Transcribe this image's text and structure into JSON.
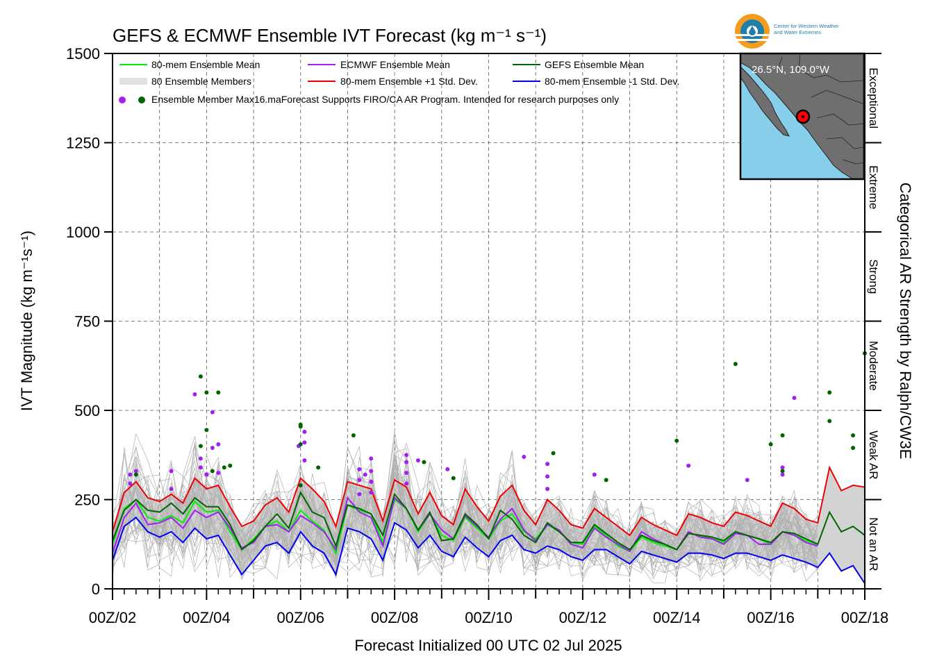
{
  "chart_data": {
    "type": "line",
    "title": "GEFS & ECMWF Ensemble IVT Forecast (kg m⁻¹ s⁻¹)",
    "xlabel": "Forecast Initialized 00 UTC 02 Jul 2025",
    "ylabel": "IVT Magnitude (kg m⁻¹s⁻¹)",
    "right_axis_label": "Categorical AR Strength by Ralph/CW3E",
    "xlim": [
      0,
      384
    ],
    "ylim": [
      0,
      1500
    ],
    "grid": true,
    "x_tick_hours": [
      0,
      48,
      96,
      144,
      192,
      240,
      288,
      336,
      384
    ],
    "x_tick_labels": [
      "00Z/02",
      "00Z/04",
      "00Z/06",
      "00Z/08",
      "00Z/10",
      "00Z/12",
      "00Z/14",
      "00Z/16",
      "00Z/18"
    ],
    "y_ticks": [
      0,
      250,
      500,
      750,
      1000,
      1250,
      1500
    ],
    "ar_categories": [
      {
        "label": "Not an AR",
        "from": 0,
        "to": 250
      },
      {
        "label": "Weak AR",
        "from": 250,
        "to": 500
      },
      {
        "label": "Moderate",
        "from": 500,
        "to": 750
      },
      {
        "label": "Strong",
        "from": 750,
        "to": 1000
      },
      {
        "label": "Extreme",
        "from": 1000,
        "to": 1250
      },
      {
        "label": "Exceptional",
        "from": 1250,
        "to": 1500
      }
    ],
    "legend": {
      "placement": "top-left",
      "entries": [
        "80-mem Ensemble Mean",
        "ECMWF Ensemble Mean",
        "GEFS Ensemble Mean",
        "80 Ensemble Members",
        "80-mem Ensemble +1 Std. Dev.",
        "80-mem Ensemble -1 Std. Dev.",
        "Ensemble Member Max"
      ],
      "note": "16.maForecast Supports FIRO/CA AR Program. Intended for research purposes only"
    },
    "colors": {
      "mean": "#00ee00",
      "ecmwf": "#a020f0",
      "gefs": "#006400",
      "plus_std": "#ee0000",
      "minus_std": "#0000ee",
      "members": "#b0b0b0",
      "band": "#d3d3d3"
    },
    "series": [
      {
        "name": "80-mem Ensemble Mean",
        "x": [
          0,
          6,
          12,
          18,
          24,
          30,
          36,
          42,
          48,
          54,
          60,
          66,
          72,
          78,
          84,
          90,
          96,
          102,
          108,
          114,
          120,
          126,
          132,
          138,
          144,
          150,
          156,
          162,
          168,
          174,
          180,
          186,
          192,
          198,
          204,
          210,
          216,
          222,
          228,
          234,
          240,
          246,
          252,
          258,
          264,
          270,
          276,
          282,
          288,
          294,
          300,
          306,
          312,
          318,
          324,
          330,
          336,
          342,
          348,
          354,
          360
        ],
        "y": [
          125,
          225,
          250,
          200,
          190,
          205,
          185,
          245,
          215,
          220,
          160,
          110,
          140,
          175,
          190,
          160,
          220,
          190,
          165,
          100,
          235,
          220,
          210,
          130,
          250,
          225,
          160,
          210,
          150,
          135,
          200,
          170,
          140,
          190,
          210,
          160,
          140,
          180,
          160,
          130,
          125,
          175,
          150,
          120,
          105,
          145,
          130,
          120,
          110,
          155,
          150,
          140,
          130,
          160,
          150,
          140,
          125,
          160,
          150,
          135,
          125
        ]
      },
      {
        "name": "ECMWF Ensemble Mean",
        "x": [
          0,
          6,
          12,
          18,
          24,
          30,
          36,
          42,
          48,
          54,
          60,
          66,
          72,
          78,
          84,
          90,
          96,
          102,
          108,
          114,
          120,
          126,
          132,
          138,
          144,
          150,
          156,
          162,
          168,
          174,
          180,
          186,
          192,
          198,
          204,
          210,
          216,
          222,
          228,
          234,
          240,
          246,
          252,
          258,
          264,
          270,
          276,
          282,
          288,
          294,
          300,
          306,
          312,
          318,
          324,
          330,
          336,
          342,
          348,
          354,
          360
        ],
        "y": [
          100,
          200,
          240,
          180,
          185,
          200,
          170,
          220,
          200,
          215,
          170,
          115,
          130,
          175,
          180,
          160,
          205,
          185,
          160,
          110,
          255,
          215,
          200,
          120,
          255,
          225,
          165,
          210,
          165,
          140,
          205,
          175,
          145,
          195,
          225,
          165,
          135,
          180,
          165,
          125,
          115,
          170,
          145,
          125,
          105,
          160,
          140,
          125,
          110,
          160,
          145,
          140,
          125,
          155,
          150,
          125,
          125,
          160,
          150,
          130,
          120
        ]
      },
      {
        "name": "GEFS Ensemble Mean",
        "x": [
          0,
          6,
          12,
          18,
          24,
          30,
          36,
          42,
          48,
          54,
          60,
          66,
          72,
          78,
          84,
          90,
          96,
          102,
          108,
          114,
          120,
          126,
          132,
          138,
          144,
          150,
          156,
          162,
          168,
          174,
          180,
          186,
          192,
          198,
          204,
          210,
          216,
          222,
          228,
          234,
          240,
          246,
          252,
          258,
          264,
          270,
          276,
          282,
          288,
          294,
          300,
          306,
          312,
          318,
          324,
          330,
          336,
          342,
          348,
          354,
          360,
          366,
          372,
          378,
          384
        ],
        "y": [
          135,
          220,
          250,
          220,
          215,
          240,
          210,
          255,
          230,
          230,
          180,
          110,
          135,
          175,
          210,
          170,
          270,
          215,
          200,
          120,
          235,
          225,
          210,
          150,
          265,
          225,
          165,
          215,
          135,
          140,
          210,
          180,
          140,
          220,
          195,
          150,
          130,
          185,
          160,
          130,
          130,
          180,
          155,
          130,
          110,
          150,
          135,
          125,
          110,
          155,
          150,
          145,
          135,
          160,
          150,
          140,
          130,
          160,
          155,
          140,
          125,
          215,
          160,
          175,
          150
        ]
      },
      {
        "name": "80-mem Ensemble +1 Std. Dev.",
        "x": [
          0,
          6,
          12,
          18,
          24,
          30,
          36,
          42,
          48,
          54,
          60,
          66,
          72,
          78,
          84,
          90,
          96,
          102,
          108,
          114,
          120,
          126,
          132,
          138,
          144,
          150,
          156,
          162,
          168,
          174,
          180,
          186,
          192,
          198,
          204,
          210,
          216,
          222,
          228,
          234,
          240,
          246,
          252,
          258,
          264,
          270,
          276,
          282,
          288,
          294,
          300,
          306,
          312,
          318,
          324,
          330,
          336,
          342,
          348,
          354,
          360,
          366,
          372,
          378,
          384
        ],
        "y": [
          160,
          270,
          300,
          255,
          245,
          265,
          240,
          310,
          280,
          290,
          230,
          175,
          190,
          235,
          255,
          215,
          310,
          280,
          245,
          175,
          300,
          290,
          280,
          190,
          305,
          285,
          210,
          270,
          205,
          180,
          280,
          230,
          190,
          260,
          290,
          220,
          180,
          250,
          220,
          180,
          170,
          225,
          200,
          175,
          150,
          200,
          180,
          165,
          150,
          210,
          200,
          185,
          175,
          215,
          205,
          190,
          175,
          240,
          225,
          195,
          185,
          340,
          275,
          290,
          285
        ]
      },
      {
        "name": "80-mem Ensemble -1 Std. Dev.",
        "x": [
          0,
          6,
          12,
          18,
          24,
          30,
          36,
          42,
          48,
          54,
          60,
          66,
          72,
          78,
          84,
          90,
          96,
          102,
          108,
          114,
          120,
          126,
          132,
          138,
          144,
          150,
          156,
          162,
          168,
          174,
          180,
          186,
          192,
          198,
          204,
          210,
          216,
          222,
          228,
          234,
          240,
          246,
          252,
          258,
          264,
          270,
          276,
          282,
          288,
          294,
          300,
          306,
          312,
          318,
          324,
          330,
          336,
          342,
          348,
          354,
          360,
          366,
          372,
          378,
          384
        ],
        "y": [
          80,
          175,
          200,
          160,
          145,
          160,
          130,
          170,
          140,
          150,
          95,
          40,
          80,
          120,
          130,
          100,
          160,
          120,
          100,
          40,
          170,
          160,
          140,
          80,
          185,
          165,
          115,
          150,
          105,
          90,
          145,
          115,
          90,
          135,
          150,
          110,
          100,
          120,
          110,
          90,
          80,
          110,
          110,
          90,
          70,
          105,
          95,
          85,
          75,
          100,
          100,
          95,
          85,
          100,
          100,
          90,
          80,
          95,
          85,
          75,
          60,
          100,
          50,
          65,
          15
        ]
      }
    ],
    "member_max_ecmwf": [
      {
        "x": 9,
        "y": 295
      },
      {
        "x": 9,
        "y": 320
      },
      {
        "x": 12,
        "y": 330
      },
      {
        "x": 30,
        "y": 330
      },
      {
        "x": 30,
        "y": 280
      },
      {
        "x": 42,
        "y": 545
      },
      {
        "x": 45,
        "y": 365
      },
      {
        "x": 45,
        "y": 340
      },
      {
        "x": 51,
        "y": 495
      },
      {
        "x": 51,
        "y": 395
      },
      {
        "x": 54,
        "y": 405
      },
      {
        "x": 54,
        "y": 325
      },
      {
        "x": 48,
        "y": 320
      },
      {
        "x": 95,
        "y": 400
      },
      {
        "x": 98,
        "y": 440
      },
      {
        "x": 98,
        "y": 410
      },
      {
        "x": 98,
        "y": 360
      },
      {
        "x": 126,
        "y": 335
      },
      {
        "x": 126,
        "y": 305
      },
      {
        "x": 126,
        "y": 265
      },
      {
        "x": 129,
        "y": 320
      },
      {
        "x": 132,
        "y": 365
      },
      {
        "x": 132,
        "y": 330
      },
      {
        "x": 132,
        "y": 300
      },
      {
        "x": 132,
        "y": 270
      },
      {
        "x": 150,
        "y": 375
      },
      {
        "x": 150,
        "y": 355
      },
      {
        "x": 150,
        "y": 325
      },
      {
        "x": 150,
        "y": 295
      },
      {
        "x": 156,
        "y": 360
      },
      {
        "x": 171,
        "y": 335
      },
      {
        "x": 210,
        "y": 370
      },
      {
        "x": 222,
        "y": 350
      },
      {
        "x": 222,
        "y": 315
      },
      {
        "x": 222,
        "y": 280
      },
      {
        "x": 246,
        "y": 320
      },
      {
        "x": 294,
        "y": 345
      },
      {
        "x": 324,
        "y": 305
      },
      {
        "x": 342,
        "y": 340
      },
      {
        "x": 342,
        "y": 320
      },
      {
        "x": 348,
        "y": 535
      }
    ],
    "member_max_gefs": [
      {
        "x": 12,
        "y": 320
      },
      {
        "x": 45,
        "y": 595
      },
      {
        "x": 45,
        "y": 400
      },
      {
        "x": 48,
        "y": 550
      },
      {
        "x": 48,
        "y": 445
      },
      {
        "x": 51,
        "y": 330
      },
      {
        "x": 54,
        "y": 550
      },
      {
        "x": 57,
        "y": 340
      },
      {
        "x": 60,
        "y": 345
      },
      {
        "x": 96,
        "y": 460
      },
      {
        "x": 96,
        "y": 455
      },
      {
        "x": 96,
        "y": 405
      },
      {
        "x": 96,
        "y": 290
      },
      {
        "x": 105,
        "y": 340
      },
      {
        "x": 123,
        "y": 430
      },
      {
        "x": 159,
        "y": 355
      },
      {
        "x": 174,
        "y": 310
      },
      {
        "x": 225,
        "y": 380
      },
      {
        "x": 252,
        "y": 305
      },
      {
        "x": 288,
        "y": 415
      },
      {
        "x": 318,
        "y": 630
      },
      {
        "x": 336,
        "y": 405
      },
      {
        "x": 342,
        "y": 430
      },
      {
        "x": 342,
        "y": 330
      },
      {
        "x": 366,
        "y": 550
      },
      {
        "x": 366,
        "y": 470
      },
      {
        "x": 378,
        "y": 430
      },
      {
        "x": 378,
        "y": 395
      },
      {
        "x": 384,
        "y": 660
      }
    ]
  },
  "logo": {
    "line1": "Center for Western Weather",
    "line2": "and Water Extremes"
  },
  "inset_map": {
    "location_label": "26.5°N, 109.0°W",
    "ocean_color": "#87ceeb",
    "land_color": "#6f6f6f",
    "point_color": "#ff0000"
  }
}
